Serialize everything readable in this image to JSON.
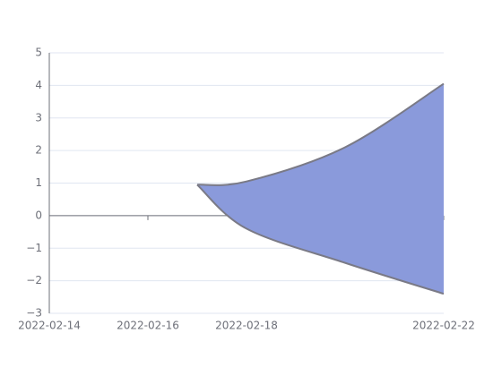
{
  "chart_data": {
    "type": "area-range",
    "x": [
      "2022-02-17",
      "2022-02-18",
      "2022-02-20",
      "2022-02-22"
    ],
    "series": [
      {
        "values": [
          0.95,
          1.05,
          2.1,
          4.05
        ]
      },
      {
        "values": [
          0.95,
          -0.4,
          -1.45,
          -2.4
        ]
      }
    ],
    "color": "#8a9adb",
    "line_color": "#7a7a86",
    "xlim": [
      "2022-02-14",
      "2022-02-22"
    ],
    "xticks": [
      "2022-02-14",
      "2022-02-16",
      "2022-02-18",
      "2022-02-22"
    ],
    "ylim": [
      -3,
      5
    ],
    "yticks": [
      {
        "value": -3,
        "label": "−3"
      },
      {
        "value": -2,
        "label": "−2"
      },
      {
        "value": -1,
        "label": "−1"
      },
      0,
      1,
      2,
      3,
      4,
      5
    ],
    "grid": true
  }
}
